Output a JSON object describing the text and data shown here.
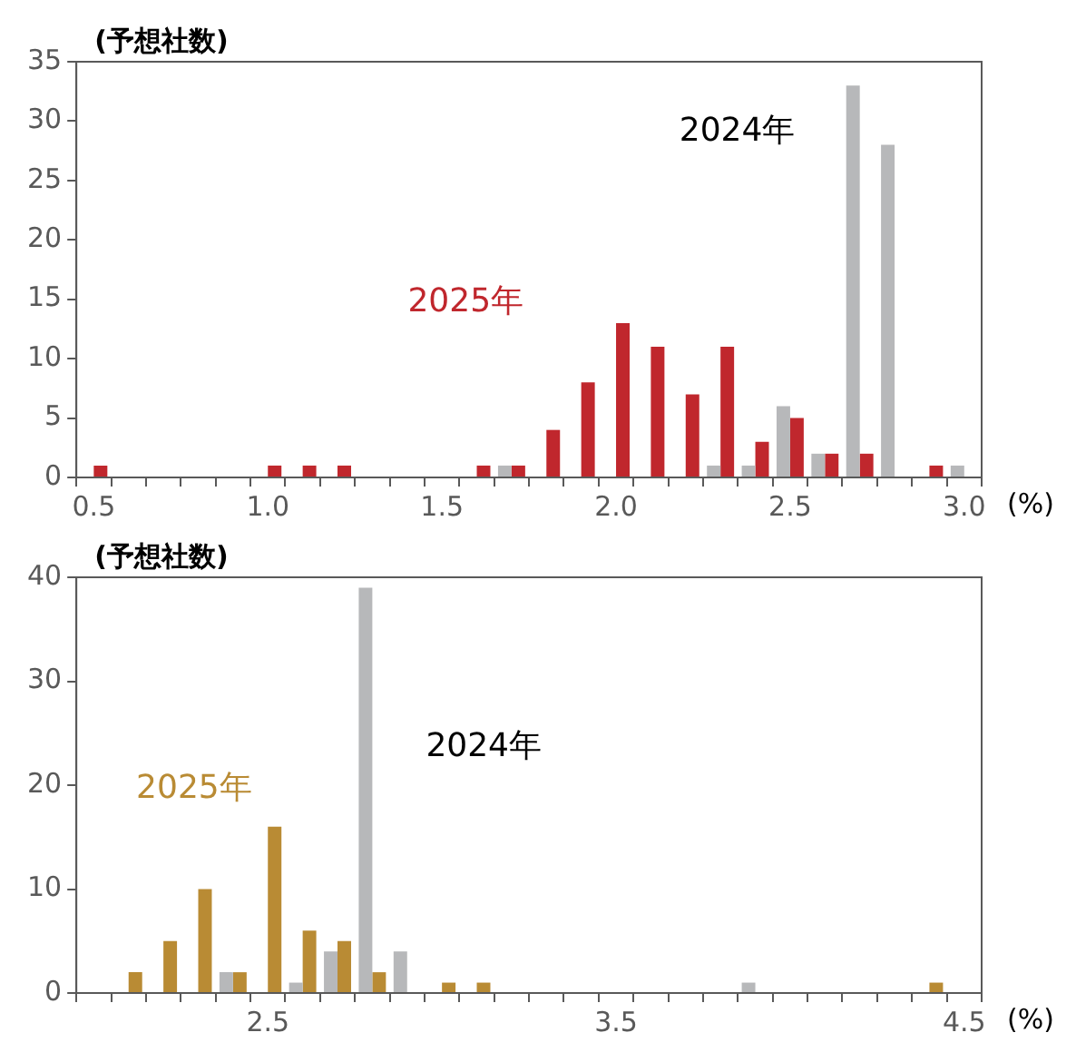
{
  "chart_data": [
    {
      "type": "bar",
      "ylabel": "(予想社数)",
      "xlabel": "(%)",
      "categories": [
        "0.5",
        null,
        null,
        null,
        null,
        "1.0",
        null,
        null,
        null,
        null,
        "1.5",
        null,
        null,
        null,
        null,
        "2.0",
        null,
        null,
        null,
        null,
        "2.5",
        null,
        null,
        null,
        null,
        "3.0"
      ],
      "ylim": [
        0,
        35
      ],
      "yticks": [
        0,
        5,
        10,
        15,
        20,
        25,
        30,
        35
      ],
      "series": [
        {
          "name": "2024年",
          "color": "#b7b8ba",
          "values": [
            0,
            0,
            0,
            0,
            0,
            0,
            0,
            0,
            0,
            0,
            0,
            0,
            1,
            0,
            0,
            0,
            0,
            0,
            1,
            1,
            6,
            2,
            33,
            28,
            0,
            1
          ]
        },
        {
          "name": "2025年",
          "color": "#c0272d",
          "values": [
            1,
            0,
            0,
            0,
            0,
            1,
            1,
            1,
            0,
            0,
            0,
            1,
            1,
            4,
            8,
            13,
            11,
            7,
            11,
            3,
            5,
            2,
            2,
            0,
            1,
            0
          ]
        }
      ]
    },
    {
      "type": "bar",
      "ylabel": "(予想社数)",
      "xlabel": "(%)",
      "categories": [
        null,
        null,
        null,
        null,
        null,
        "2.5",
        null,
        null,
        null,
        null,
        null,
        null,
        null,
        null,
        null,
        "3.5",
        null,
        null,
        null,
        null,
        null,
        null,
        null,
        null,
        null,
        "4.5"
      ],
      "ylim": [
        0,
        40
      ],
      "yticks": [
        0,
        10,
        20,
        30,
        40
      ],
      "series": [
        {
          "name": "2024年",
          "color": "#b7b8ba",
          "values": [
            0,
            0,
            0,
            0,
            2,
            0,
            1,
            4,
            39,
            4,
            0,
            0,
            0,
            0,
            0,
            0,
            0,
            0,
            0,
            1,
            0,
            0,
            0,
            0,
            0,
            0
          ]
        },
        {
          "name": "2025年",
          "color": "#b98b34",
          "values": [
            0,
            2,
            5,
            10,
            2,
            16,
            6,
            5,
            2,
            0,
            1,
            1,
            0,
            0,
            0,
            0,
            0,
            0,
            0,
            0,
            0,
            0,
            0,
            0,
            1,
            0
          ]
        }
      ]
    }
  ]
}
